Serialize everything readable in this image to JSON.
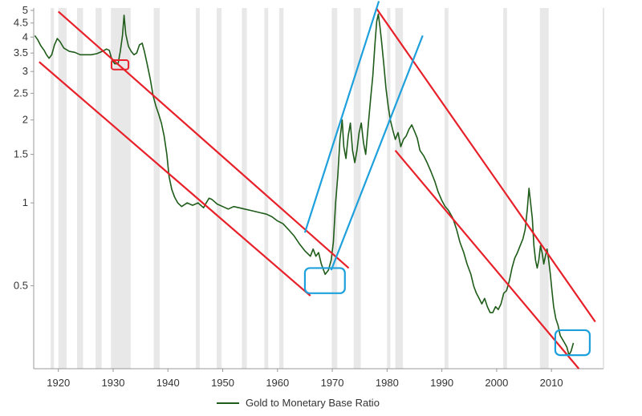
{
  "chart_data": {
    "type": "line",
    "title": "",
    "xlabel": "",
    "ylabel": "",
    "xlim": [
      1915.5,
      2019.5
    ],
    "ylim": [
      0.25,
      5.1
    ],
    "y_scale": "log",
    "grid": "vertical recession shading bands",
    "legend_placement": "bottom-center",
    "x_ticks": [
      1920,
      1930,
      1940,
      1950,
      1960,
      1970,
      1980,
      1990,
      2000,
      2010
    ],
    "y_ticks": [
      {
        "value": 0.5,
        "label": "0.5"
      },
      {
        "value": 1,
        "label": "1"
      },
      {
        "value": 1.5,
        "label": "1.5"
      },
      {
        "value": 2,
        "label": "2"
      },
      {
        "value": 2.5,
        "label": "2.5"
      },
      {
        "value": 3,
        "label": "3"
      },
      {
        "value": 3.5,
        "label": "3.5"
      },
      {
        "value": 4,
        "label": "4"
      },
      {
        "value": 4.5,
        "label": "4.5"
      },
      {
        "value": 5,
        "label": "5"
      }
    ],
    "colors": {
      "series": "#1f5c1a",
      "bear_channel": "#e8202a",
      "bull_channel": "#1ea0dc",
      "recession": "#e8e8e8",
      "axis": "#999999"
    },
    "recessions": [
      [
        1918.6,
        1919.2
      ],
      [
        1920.0,
        1921.5
      ],
      [
        1923.4,
        1924.5
      ],
      [
        1926.8,
        1927.9
      ],
      [
        1929.6,
        1933.2
      ],
      [
        1937.4,
        1938.5
      ],
      [
        1945.1,
        1945.8
      ],
      [
        1948.9,
        1949.8
      ],
      [
        1953.5,
        1954.4
      ],
      [
        1957.6,
        1958.3
      ],
      [
        1960.3,
        1961.1
      ],
      [
        1969.9,
        1970.9
      ],
      [
        1973.9,
        1975.2
      ],
      [
        1980.0,
        1980.6
      ],
      [
        1981.5,
        1982.9
      ],
      [
        1990.5,
        1991.2
      ],
      [
        2001.2,
        2001.9
      ],
      [
        2007.9,
        2009.5
      ]
    ],
    "series": [
      {
        "name": "Gold to Monetary Base Ratio",
        "points": [
          [
            1915.7,
            4.05
          ],
          [
            1916.2,
            3.92
          ],
          [
            1916.8,
            3.72
          ],
          [
            1917.4,
            3.58
          ],
          [
            1917.8,
            3.46
          ],
          [
            1918.3,
            3.35
          ],
          [
            1918.8,
            3.45
          ],
          [
            1919.3,
            3.75
          ],
          [
            1919.8,
            3.95
          ],
          [
            1920.3,
            3.85
          ],
          [
            1921.0,
            3.65
          ],
          [
            1922.0,
            3.55
          ],
          [
            1923.0,
            3.52
          ],
          [
            1924.0,
            3.45
          ],
          [
            1925.0,
            3.45
          ],
          [
            1926.0,
            3.45
          ],
          [
            1927.0,
            3.48
          ],
          [
            1928.0,
            3.55
          ],
          [
            1928.8,
            3.62
          ],
          [
            1929.3,
            3.58
          ],
          [
            1929.8,
            3.3
          ],
          [
            1930.3,
            3.2
          ],
          [
            1930.9,
            3.2
          ],
          [
            1931.3,
            3.55
          ],
          [
            1931.7,
            4.05
          ],
          [
            1932.0,
            4.8
          ],
          [
            1932.3,
            4.1
          ],
          [
            1932.8,
            3.7
          ],
          [
            1933.3,
            3.55
          ],
          [
            1933.8,
            3.45
          ],
          [
            1934.3,
            3.5
          ],
          [
            1934.8,
            3.75
          ],
          [
            1935.3,
            3.8
          ],
          [
            1935.7,
            3.55
          ],
          [
            1936.2,
            3.2
          ],
          [
            1936.8,
            2.8
          ],
          [
            1937.3,
            2.45
          ],
          [
            1937.8,
            2.25
          ],
          [
            1938.3,
            2.1
          ],
          [
            1938.8,
            1.95
          ],
          [
            1939.3,
            1.75
          ],
          [
            1939.8,
            1.5
          ],
          [
            1940.2,
            1.25
          ],
          [
            1940.7,
            1.12
          ],
          [
            1941.2,
            1.05
          ],
          [
            1941.8,
            1.0
          ],
          [
            1942.5,
            0.97
          ],
          [
            1943.5,
            1.0
          ],
          [
            1944.5,
            0.98
          ],
          [
            1945.5,
            1.0
          ],
          [
            1946.5,
            0.96
          ],
          [
            1947.0,
            1.0
          ],
          [
            1947.5,
            1.04
          ],
          [
            1948.0,
            1.03
          ],
          [
            1949.0,
            0.99
          ],
          [
            1950.0,
            0.97
          ],
          [
            1951.0,
            0.95
          ],
          [
            1952.0,
            0.97
          ],
          [
            1953.0,
            0.96
          ],
          [
            1954.0,
            0.95
          ],
          [
            1955.0,
            0.94
          ],
          [
            1956.0,
            0.93
          ],
          [
            1957.0,
            0.92
          ],
          [
            1958.0,
            0.91
          ],
          [
            1959.0,
            0.89
          ],
          [
            1960.0,
            0.86
          ],
          [
            1961.0,
            0.84
          ],
          [
            1962.0,
            0.8
          ],
          [
            1963.0,
            0.76
          ],
          [
            1964.0,
            0.71
          ],
          [
            1965.0,
            0.67
          ],
          [
            1966.0,
            0.64
          ],
          [
            1966.5,
            0.68
          ],
          [
            1967.0,
            0.64
          ],
          [
            1967.5,
            0.66
          ],
          [
            1968.0,
            0.6
          ],
          [
            1968.7,
            0.55
          ],
          [
            1969.3,
            0.57
          ],
          [
            1969.8,
            0.62
          ],
          [
            1970.2,
            0.72
          ],
          [
            1970.6,
            1.0
          ],
          [
            1971.0,
            1.25
          ],
          [
            1971.4,
            1.7
          ],
          [
            1971.8,
            2.0
          ],
          [
            1972.1,
            1.6
          ],
          [
            1972.5,
            1.45
          ],
          [
            1972.9,
            1.75
          ],
          [
            1973.3,
            1.95
          ],
          [
            1973.7,
            1.55
          ],
          [
            1974.1,
            1.4
          ],
          [
            1974.5,
            1.55
          ],
          [
            1974.9,
            1.8
          ],
          [
            1975.3,
            1.95
          ],
          [
            1975.7,
            1.65
          ],
          [
            1976.1,
            1.5
          ],
          [
            1976.6,
            1.95
          ],
          [
            1977.0,
            2.4
          ],
          [
            1977.4,
            2.9
          ],
          [
            1977.8,
            3.8
          ],
          [
            1978.1,
            4.55
          ],
          [
            1978.4,
            4.85
          ],
          [
            1978.7,
            4.35
          ],
          [
            1979.0,
            3.85
          ],
          [
            1979.4,
            3.2
          ],
          [
            1979.8,
            2.6
          ],
          [
            1980.2,
            2.25
          ],
          [
            1980.6,
            2.0
          ],
          [
            1981.0,
            1.85
          ],
          [
            1981.5,
            1.7
          ],
          [
            1982.0,
            1.8
          ],
          [
            1982.5,
            1.6
          ],
          [
            1983.0,
            1.7
          ],
          [
            1983.5,
            1.75
          ],
          [
            1984.0,
            1.85
          ],
          [
            1984.5,
            1.92
          ],
          [
            1985.0,
            1.82
          ],
          [
            1985.5,
            1.72
          ],
          [
            1986.0,
            1.55
          ],
          [
            1986.7,
            1.48
          ],
          [
            1987.3,
            1.4
          ],
          [
            1988.0,
            1.3
          ],
          [
            1988.7,
            1.2
          ],
          [
            1989.3,
            1.1
          ],
          [
            1990.0,
            1.02
          ],
          [
            1990.6,
            0.97
          ],
          [
            1991.2,
            0.94
          ],
          [
            1992.0,
            0.88
          ],
          [
            1992.7,
            0.8
          ],
          [
            1993.3,
            0.72
          ],
          [
            1994.0,
            0.66
          ],
          [
            1994.6,
            0.6
          ],
          [
            1995.3,
            0.55
          ],
          [
            1995.8,
            0.5
          ],
          [
            1996.3,
            0.47
          ],
          [
            1996.8,
            0.45
          ],
          [
            1997.3,
            0.43
          ],
          [
            1997.8,
            0.45
          ],
          [
            1998.3,
            0.42
          ],
          [
            1998.8,
            0.4
          ],
          [
            1999.3,
            0.4
          ],
          [
            1999.8,
            0.42
          ],
          [
            2000.3,
            0.41
          ],
          [
            2000.8,
            0.43
          ],
          [
            2001.3,
            0.47
          ],
          [
            2001.8,
            0.48
          ],
          [
            2002.3,
            0.52
          ],
          [
            2002.8,
            0.58
          ],
          [
            2003.3,
            0.63
          ],
          [
            2003.8,
            0.66
          ],
          [
            2004.3,
            0.7
          ],
          [
            2004.8,
            0.74
          ],
          [
            2005.2,
            0.8
          ],
          [
            2005.6,
            0.95
          ],
          [
            2005.9,
            1.13
          ],
          [
            2006.2,
            1.0
          ],
          [
            2006.5,
            0.88
          ],
          [
            2006.8,
            0.7
          ],
          [
            2007.1,
            0.62
          ],
          [
            2007.4,
            0.58
          ],
          [
            2007.7,
            0.62
          ],
          [
            2008.0,
            0.7
          ],
          [
            2008.3,
            0.66
          ],
          [
            2008.6,
            0.6
          ],
          [
            2008.9,
            0.64
          ],
          [
            2009.2,
            0.68
          ],
          [
            2009.5,
            0.62
          ],
          [
            2009.8,
            0.55
          ],
          [
            2010.1,
            0.48
          ],
          [
            2010.4,
            0.42
          ],
          [
            2010.8,
            0.38
          ],
          [
            2011.2,
            0.36
          ],
          [
            2011.6,
            0.33
          ],
          [
            2012.0,
            0.32
          ],
          [
            2012.4,
            0.31
          ],
          [
            2012.8,
            0.3
          ],
          [
            2013.2,
            0.28
          ],
          [
            2013.6,
            0.29
          ],
          [
            2014.0,
            0.31
          ]
        ]
      }
    ],
    "annotations": {
      "red_lines": [
        {
          "from": [
            1920.0,
            4.95
          ],
          "to": [
            1973.0,
            0.58
          ]
        },
        {
          "from": [
            1916.5,
            3.25
          ],
          "to": [
            1966.0,
            0.46
          ]
        },
        {
          "from": [
            1978.0,
            5.1
          ],
          "to": [
            2018.0,
            0.37
          ]
        },
        {
          "from": [
            1981.5,
            1.55
          ],
          "to": [
            2015.0,
            0.25
          ]
        }
      ],
      "blue_lines": [
        {
          "from": [
            1965.0,
            0.78
          ],
          "to": [
            1978.5,
            5.4
          ]
        },
        {
          "from": [
            1969.8,
            0.57
          ],
          "to": [
            1986.5,
            4.05
          ]
        }
      ],
      "red_boxes": [
        {
          "x": [
            1929.7,
            1932.8
          ],
          "y": [
            3.05,
            3.3
          ]
        }
      ],
      "blue_boxes": [
        {
          "x": [
            1965.0,
            1972.3
          ],
          "y": [
            0.47,
            0.58
          ]
        },
        {
          "x": [
            2010.7,
            2017.0
          ],
          "y": [
            0.28,
            0.345
          ]
        }
      ]
    },
    "legend": [
      {
        "label": "Gold to Monetary Base Ratio",
        "color": "#1f5c1a"
      }
    ]
  }
}
